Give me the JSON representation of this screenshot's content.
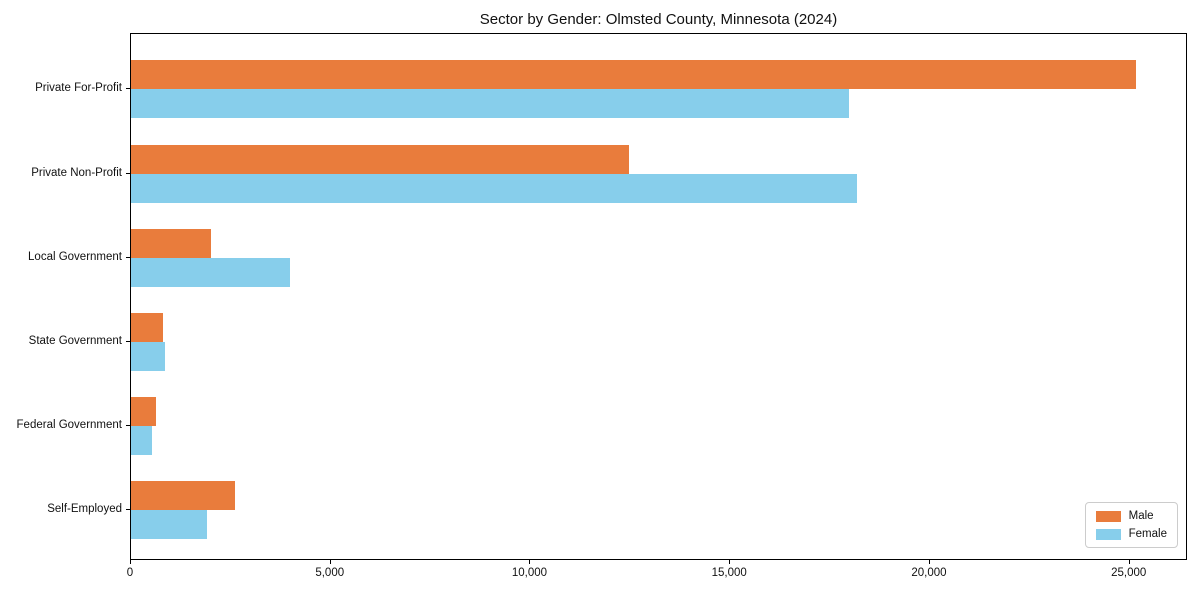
{
  "page": {
    "background": "#ffffff"
  },
  "chart_data": {
    "type": "bar",
    "orientation": "horizontal",
    "title": "Sector by Gender: Olmsted County, Minnesota (2024)",
    "categories": [
      "Private For-Profit",
      "Private Non-Profit",
      "Local Government",
      "State Government",
      "Federal Government",
      "Self-Employed"
    ],
    "series": [
      {
        "name": "Male",
        "color": "#e97c3c",
        "values": [
          25200,
          12500,
          2000,
          800,
          630,
          2600
        ]
      },
      {
        "name": "Female",
        "color": "#87ceeb",
        "values": [
          18000,
          18200,
          3980,
          860,
          520,
          1900
        ]
      }
    ],
    "xlabel": "",
    "ylabel": "",
    "xlim": [
      0,
      26460
    ],
    "xticks": [
      0,
      5000,
      10000,
      15000,
      20000,
      25000
    ],
    "xtick_labels": [
      "0",
      "5,000",
      "10,000",
      "15,000",
      "20,000",
      "25,000"
    ],
    "grid": false,
    "legend": {
      "position": "lower right",
      "entries": [
        "Male",
        "Female"
      ]
    },
    "axis_color": "#000000",
    "text_color": "#111111"
  }
}
